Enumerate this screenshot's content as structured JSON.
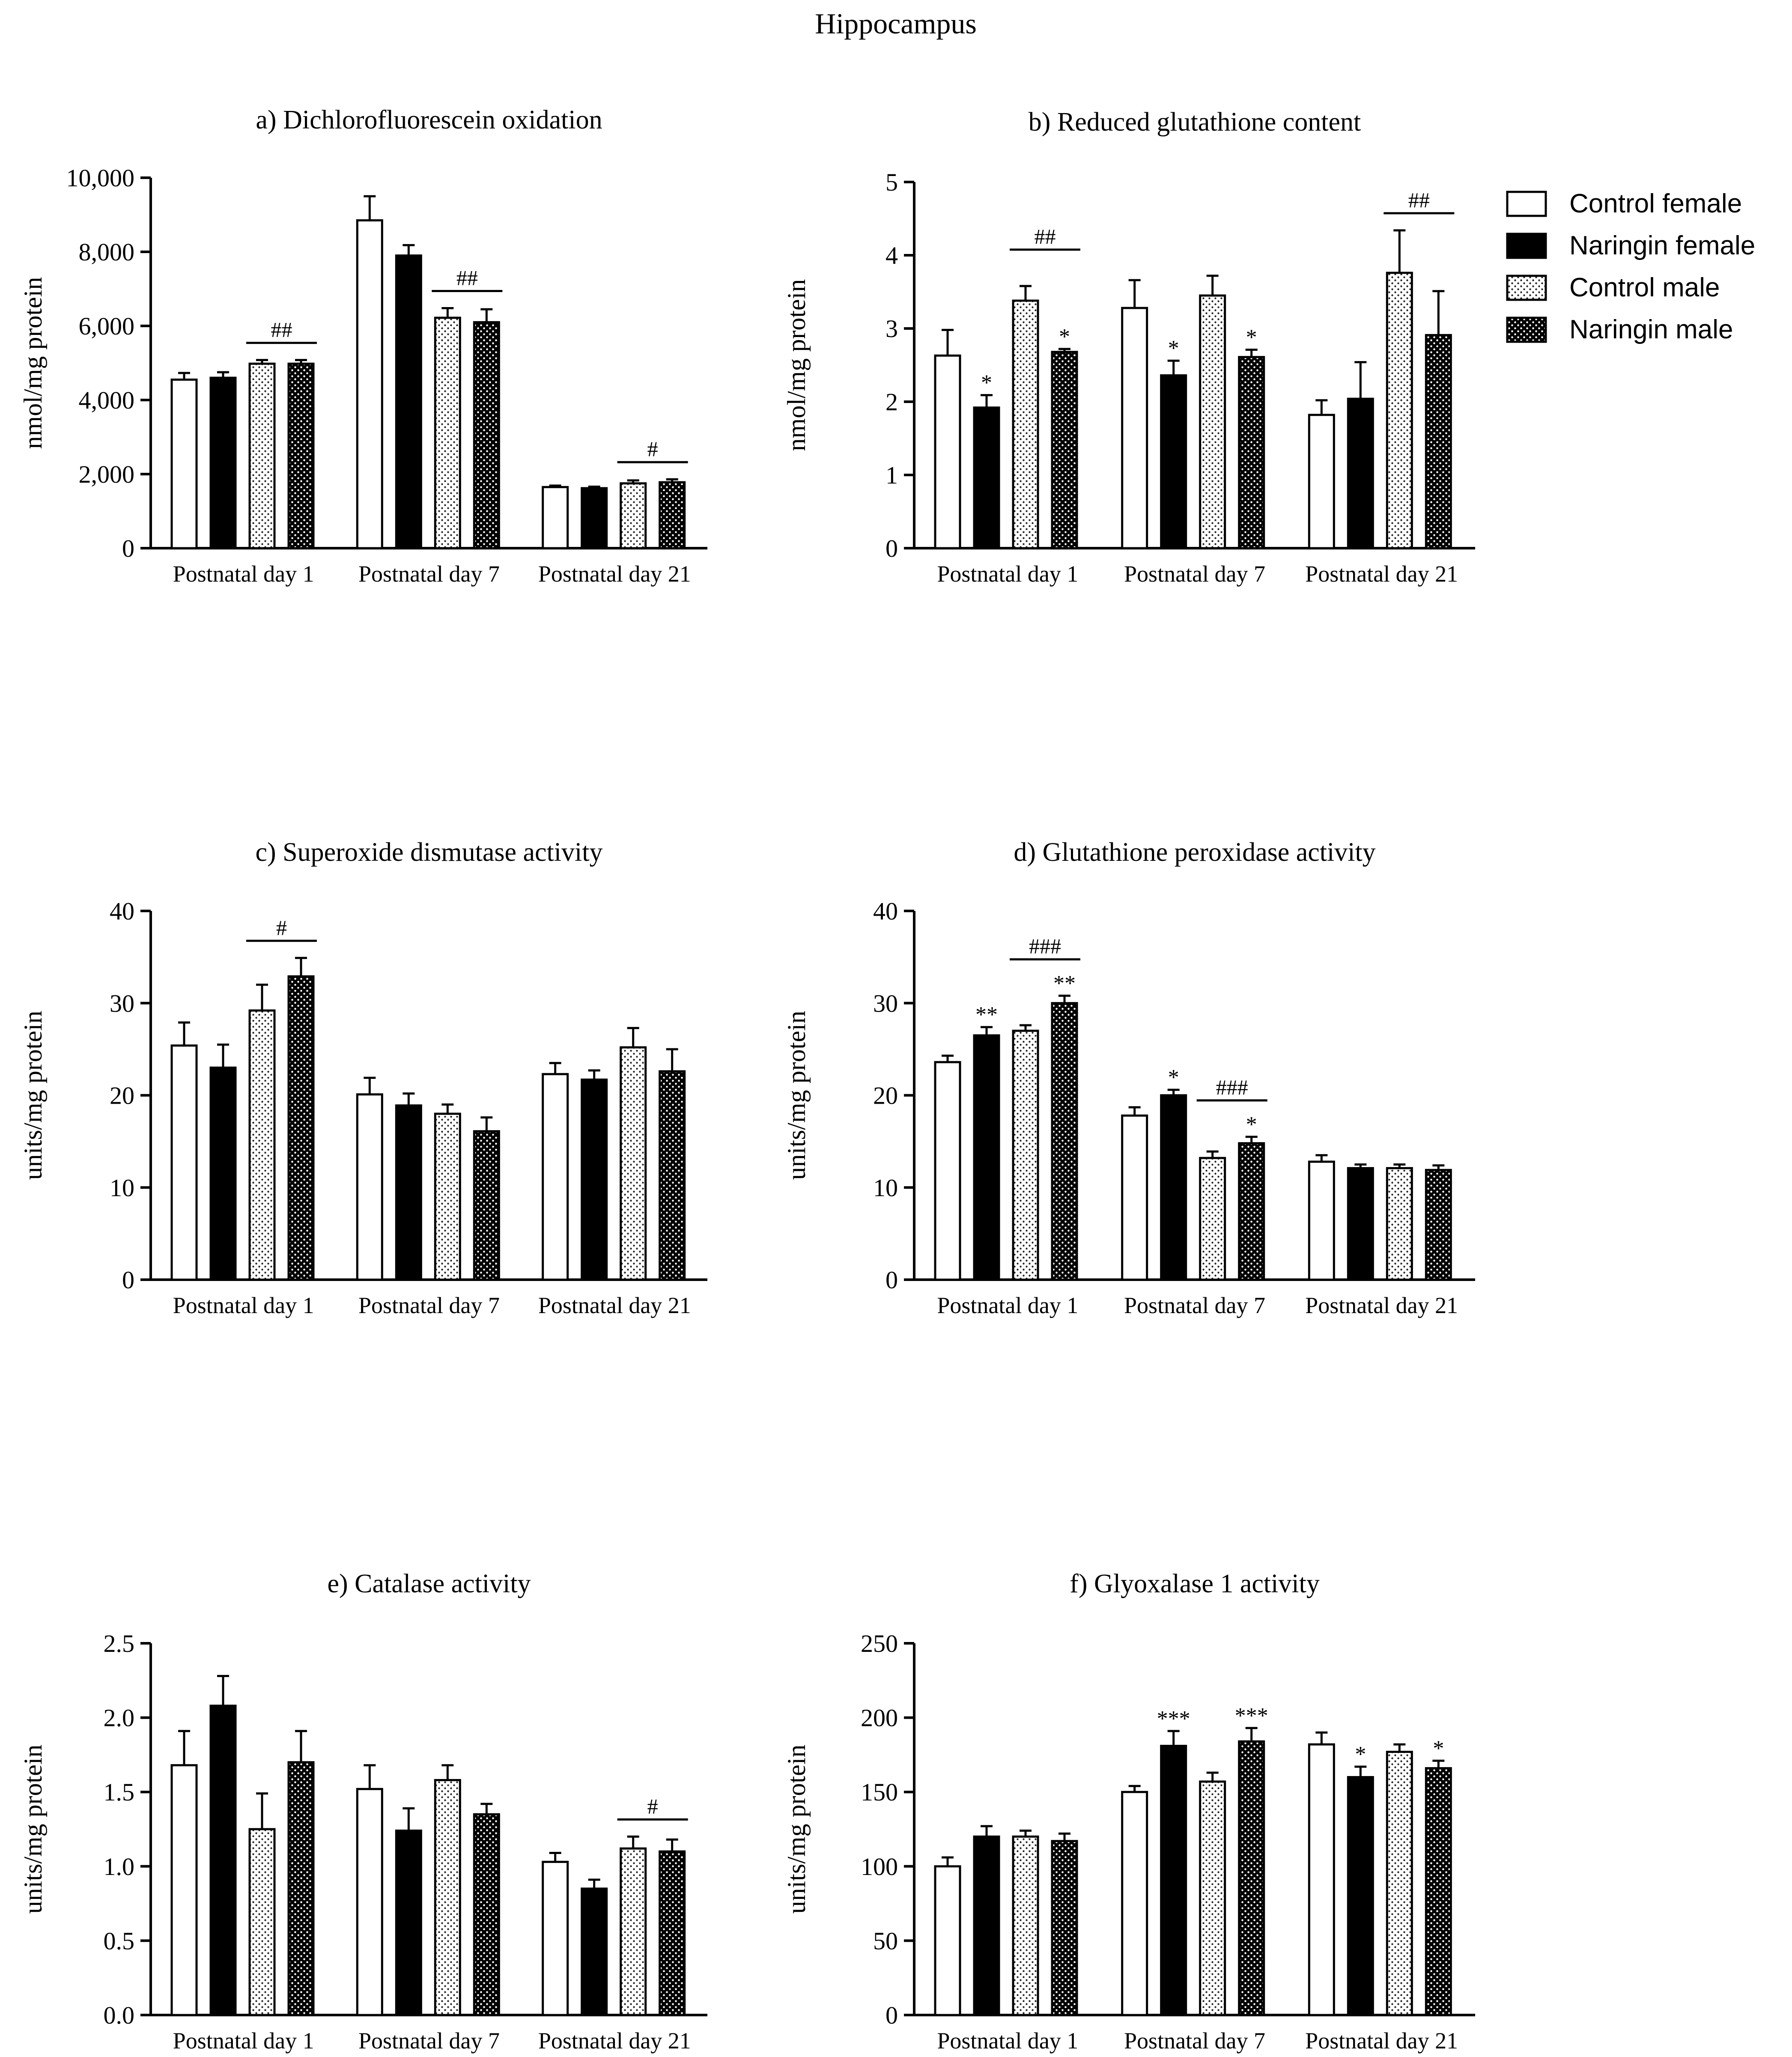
{
  "figure_title": "Hippocampus",
  "legend": {
    "entries": [
      {
        "label": "Control female",
        "pattern": "white"
      },
      {
        "label": "Naringin female",
        "pattern": "black"
      },
      {
        "label": "Control male",
        "pattern": "dots-light"
      },
      {
        "label": "Naringin male",
        "pattern": "dots-dark"
      }
    ]
  },
  "colors": {
    "ink": "#000000",
    "fill_black": "#000000",
    "fill_white": "#ffffff"
  },
  "chart_data": [
    {
      "type": "bar",
      "title": "a) Dichlorofluorescein oxidation",
      "ylabel": "nmol/mg protein",
      "ylim": [
        0,
        10000
      ],
      "yticks": [
        0,
        2000,
        4000,
        6000,
        8000,
        10000
      ],
      "ytick_labels": [
        "0",
        "2,000",
        "4,000",
        "6,000",
        "8,000",
        "10,000"
      ],
      "categories": [
        "Postnatal day 1",
        "Postnatal day 7",
        "Postnatal day 21"
      ],
      "series": [
        {
          "name": "Control female",
          "values": [
            4550,
            8850,
            1650
          ],
          "errors": [
            180,
            650,
            40
          ],
          "marks": [
            "",
            "",
            ""
          ]
        },
        {
          "name": "Naringin female",
          "values": [
            4600,
            7900,
            1620
          ],
          "errors": [
            150,
            280,
            40
          ],
          "marks": [
            "",
            "",
            ""
          ]
        },
        {
          "name": "Control male",
          "values": [
            4980,
            6220,
            1750
          ],
          "errors": [
            100,
            260,
            80
          ],
          "marks": [
            "",
            "",
            ""
          ]
        },
        {
          "name": "Naringin male",
          "values": [
            4980,
            6100,
            1780
          ],
          "errors": [
            100,
            350,
            80
          ],
          "marks": [
            "",
            "",
            ""
          ]
        }
      ],
      "brackets": [
        {
          "category": 0,
          "from": 2,
          "to": 3,
          "label": "##"
        },
        {
          "category": 1,
          "from": 2,
          "to": 3,
          "label": "##"
        },
        {
          "category": 2,
          "from": 2,
          "to": 3,
          "label": "#"
        }
      ]
    },
    {
      "type": "bar",
      "title": "b) Reduced glutathione content",
      "ylabel": "nmol/mg protein",
      "ylim": [
        0,
        5
      ],
      "yticks": [
        0,
        1,
        2,
        3,
        4,
        5
      ],
      "ytick_labels": [
        "0",
        "1",
        "2",
        "3",
        "4",
        "5"
      ],
      "categories": [
        "Postnatal day 1",
        "Postnatal day 7",
        "Postnatal day 21"
      ],
      "series": [
        {
          "name": "Control female",
          "values": [
            2.63,
            3.28,
            1.82
          ],
          "errors": [
            0.35,
            0.38,
            0.2
          ],
          "marks": [
            "",
            "",
            ""
          ]
        },
        {
          "name": "Naringin female",
          "values": [
            1.92,
            2.36,
            2.04
          ],
          "errors": [
            0.17,
            0.2,
            0.5
          ],
          "marks": [
            "*",
            "*",
            ""
          ]
        },
        {
          "name": "Control male",
          "values": [
            3.38,
            3.45,
            3.76
          ],
          "errors": [
            0.2,
            0.27,
            0.58
          ],
          "marks": [
            "",
            "",
            ""
          ]
        },
        {
          "name": "Naringin male",
          "values": [
            2.68,
            2.61,
            2.91
          ],
          "errors": [
            0.04,
            0.1,
            0.6
          ],
          "marks": [
            "*",
            "*",
            ""
          ]
        }
      ],
      "brackets": [
        {
          "category": 0,
          "from": 2,
          "to": 3,
          "label": "##"
        },
        {
          "category": 2,
          "from": 2,
          "to": 3,
          "label": "##"
        }
      ]
    },
    {
      "type": "bar",
      "title": "c) Superoxide dismutase activity",
      "ylabel": "units/mg protein",
      "ylim": [
        0,
        40
      ],
      "yticks": [
        0,
        10,
        20,
        30,
        40
      ],
      "ytick_labels": [
        "0",
        "10",
        "20",
        "30",
        "40"
      ],
      "categories": [
        "Postnatal day 1",
        "Postnatal day 7",
        "Postnatal day 21"
      ],
      "series": [
        {
          "name": "Control female",
          "values": [
            25.4,
            20.1,
            22.3
          ],
          "errors": [
            2.5,
            1.8,
            1.2
          ],
          "marks": [
            "",
            "",
            ""
          ]
        },
        {
          "name": "Naringin female",
          "values": [
            23.0,
            18.9,
            21.7
          ],
          "errors": [
            2.5,
            1.3,
            1.0
          ],
          "marks": [
            "",
            "",
            ""
          ]
        },
        {
          "name": "Control male",
          "values": [
            29.2,
            18.0,
            25.2
          ],
          "errors": [
            2.8,
            1.0,
            2.1
          ],
          "marks": [
            "",
            "",
            ""
          ]
        },
        {
          "name": "Naringin male",
          "values": [
            32.9,
            16.1,
            22.6
          ],
          "errors": [
            2.0,
            1.5,
            2.4
          ],
          "marks": [
            "",
            "",
            ""
          ]
        }
      ],
      "brackets": [
        {
          "category": 0,
          "from": 2,
          "to": 3,
          "label": "#"
        }
      ]
    },
    {
      "type": "bar",
      "title": "d) Glutathione peroxidase activity",
      "ylabel": "units/mg protein",
      "ylim": [
        0,
        40
      ],
      "yticks": [
        0,
        10,
        20,
        30,
        40
      ],
      "ytick_labels": [
        "0",
        "10",
        "20",
        "30",
        "40"
      ],
      "categories": [
        "Postnatal day 1",
        "Postnatal day 7",
        "Postnatal day 21"
      ],
      "series": [
        {
          "name": "Control female",
          "values": [
            23.6,
            17.8,
            12.8
          ],
          "errors": [
            0.7,
            0.9,
            0.7
          ],
          "marks": [
            "",
            "",
            ""
          ]
        },
        {
          "name": "Naringin female",
          "values": [
            26.5,
            20.0,
            12.1
          ],
          "errors": [
            0.9,
            0.6,
            0.4
          ],
          "marks": [
            "**",
            "*",
            ""
          ]
        },
        {
          "name": "Control male",
          "values": [
            27.0,
            13.2,
            12.1
          ],
          "errors": [
            0.6,
            0.7,
            0.4
          ],
          "marks": [
            "",
            "",
            ""
          ]
        },
        {
          "name": "Naringin male",
          "values": [
            30.0,
            14.8,
            11.9
          ],
          "errors": [
            0.8,
            0.7,
            0.5
          ],
          "marks": [
            "**",
            "*",
            ""
          ]
        }
      ],
      "brackets": [
        {
          "category": 0,
          "from": 2,
          "to": 3,
          "label": "###"
        },
        {
          "category": 1,
          "from": 2,
          "to": 3,
          "label": "###"
        }
      ]
    },
    {
      "type": "bar",
      "title": "e) Catalase activity",
      "ylabel": "units/mg protein",
      "ylim": [
        0,
        2.5
      ],
      "yticks": [
        0,
        0.5,
        1.0,
        1.5,
        2.0,
        2.5
      ],
      "ytick_labels": [
        "0.0",
        "0.5",
        "1.0",
        "1.5",
        "2.0",
        "2.5"
      ],
      "categories": [
        "Postnatal day 1",
        "Postnatal day 7",
        "Postnatal day 21"
      ],
      "series": [
        {
          "name": "Control female",
          "values": [
            1.68,
            1.52,
            1.03
          ],
          "errors": [
            0.23,
            0.16,
            0.06
          ],
          "marks": [
            "",
            "",
            ""
          ]
        },
        {
          "name": "Naringin female",
          "values": [
            2.08,
            1.24,
            0.85
          ],
          "errors": [
            0.2,
            0.15,
            0.06
          ],
          "marks": [
            "",
            "",
            ""
          ]
        },
        {
          "name": "Control male",
          "values": [
            1.25,
            1.58,
            1.12
          ],
          "errors": [
            0.24,
            0.1,
            0.08
          ],
          "marks": [
            "",
            "",
            ""
          ]
        },
        {
          "name": "Naringin male",
          "values": [
            1.7,
            1.35,
            1.1
          ],
          "errors": [
            0.21,
            0.07,
            0.08
          ],
          "marks": [
            "",
            "",
            ""
          ]
        }
      ],
      "brackets": [
        {
          "category": 2,
          "from": 2,
          "to": 3,
          "label": "#"
        }
      ]
    },
    {
      "type": "bar",
      "title": "f) Glyoxalase 1 activity",
      "ylabel": "units/mg protein",
      "ylim": [
        0,
        250
      ],
      "yticks": [
        0,
        50,
        100,
        150,
        200,
        250
      ],
      "ytick_labels": [
        "0",
        "50",
        "100",
        "150",
        "200",
        "250"
      ],
      "categories": [
        "Postnatal day 1",
        "Postnatal day 7",
        "Postnatal day 21"
      ],
      "series": [
        {
          "name": "Control female",
          "values": [
            100,
            150,
            182
          ],
          "errors": [
            6,
            4,
            8
          ],
          "marks": [
            "",
            "",
            ""
          ]
        },
        {
          "name": "Naringin female",
          "values": [
            120,
            181,
            160
          ],
          "errors": [
            7,
            10,
            7
          ],
          "marks": [
            "",
            "***",
            "*"
          ]
        },
        {
          "name": "Control male",
          "values": [
            120,
            157,
            177
          ],
          "errors": [
            4,
            6,
            5
          ],
          "marks": [
            "",
            "",
            ""
          ]
        },
        {
          "name": "Naringin male",
          "values": [
            117,
            184,
            166
          ],
          "errors": [
            5,
            9,
            5
          ],
          "marks": [
            "",
            "***",
            "*"
          ]
        }
      ],
      "brackets": []
    }
  ]
}
